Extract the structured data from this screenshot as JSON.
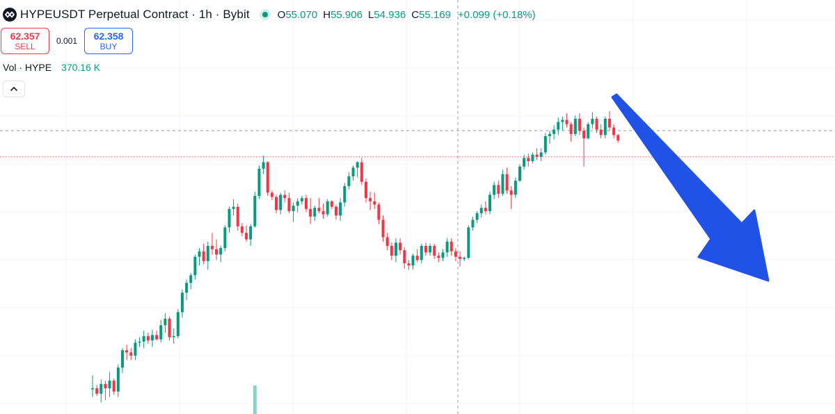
{
  "header": {
    "title": "HYPEUSDT Perpetual Contract · 1h · Bybit",
    "ohlc": {
      "o_label": "O",
      "o": "55.070",
      "h_label": "H",
      "h": "55.906",
      "l_label": "L",
      "l": "54.936",
      "c_label": "C",
      "c": "55.169",
      "change": "+0.099 (+0.18%)"
    }
  },
  "trade": {
    "sell_price": "62.357",
    "sell_label": "SELL",
    "spread": "0.001",
    "buy_price": "62.358",
    "buy_label": "BUY"
  },
  "volume": {
    "label": "Vol · HYPE",
    "value": "370.16 K"
  },
  "colors": {
    "up": "#089981",
    "down": "#f23645",
    "arrow": "#2152e8",
    "grid": "#f0f3fa"
  },
  "chart_data": {
    "type": "candlestick",
    "title": "HYPEUSDT Perpetual Contract",
    "interval": "1h",
    "ylim": [
      36.5,
      63.6
    ],
    "grid": true,
    "last_price_line": 59.4,
    "candles": [
      [
        38.0,
        39.3,
        37.3,
        38.1
      ],
      [
        38.1,
        38.4,
        37.4,
        37.6
      ],
      [
        37.6,
        38.9,
        36.8,
        38.5
      ],
      [
        38.5,
        38.8,
        37.0,
        38.1
      ],
      [
        38.1,
        39.6,
        37.3,
        38.8
      ],
      [
        38.8,
        39.0,
        37.5,
        37.8
      ],
      [
        37.8,
        40.3,
        37.3,
        40.0
      ],
      [
        40.0,
        41.8,
        39.5,
        41.6
      ],
      [
        41.6,
        42.1,
        40.7,
        41.4
      ],
      [
        41.4,
        41.8,
        40.7,
        41.1
      ],
      [
        41.1,
        42.6,
        40.7,
        42.3
      ],
      [
        42.3,
        42.8,
        41.9,
        42.4
      ],
      [
        42.4,
        43.4,
        41.8,
        42.9
      ],
      [
        42.9,
        43.2,
        42.2,
        42.5
      ],
      [
        42.5,
        43.5,
        41.9,
        43.0
      ],
      [
        43.0,
        43.4,
        42.5,
        42.6
      ],
      [
        42.6,
        44.4,
        42.3,
        43.9
      ],
      [
        43.9,
        45.0,
        43.2,
        44.5
      ],
      [
        44.5,
        44.7,
        42.5,
        42.8
      ],
      [
        42.8,
        43.6,
        42.2,
        42.9
      ],
      [
        42.9,
        45.4,
        42.7,
        45.1
      ],
      [
        45.1,
        47.2,
        44.6,
        46.9
      ],
      [
        46.9,
        48.1,
        46.2,
        47.8
      ],
      [
        47.8,
        48.7,
        47.2,
        48.5
      ],
      [
        48.5,
        50.4,
        48.1,
        50.2
      ],
      [
        50.2,
        51.0,
        49.4,
        50.7
      ],
      [
        50.7,
        51.4,
        49.5,
        49.8
      ],
      [
        49.8,
        51.6,
        49.0,
        51.2
      ],
      [
        51.2,
        52.4,
        50.4,
        50.9
      ],
      [
        50.9,
        51.8,
        49.9,
        50.4
      ],
      [
        50.4,
        51.2,
        49.7,
        51.0
      ],
      [
        51.0,
        53.1,
        50.7,
        52.9
      ],
      [
        52.9,
        54.8,
        52.4,
        54.6
      ],
      [
        54.6,
        55.5,
        54.0,
        54.8
      ],
      [
        54.8,
        55.1,
        52.6,
        53.0
      ],
      [
        53.0,
        53.3,
        52.1,
        52.4
      ],
      [
        52.4,
        53.1,
        51.6,
        51.8
      ],
      [
        51.8,
        53.2,
        51.2,
        53.0
      ],
      [
        53.0,
        56.2,
        52.9,
        55.8
      ],
      [
        55.8,
        58.6,
        55.5,
        58.3
      ],
      [
        58.3,
        59.5,
        57.8,
        58.9
      ],
      [
        58.9,
        59.0,
        55.8,
        56.1
      ],
      [
        56.1,
        56.3,
        55.4,
        55.7
      ],
      [
        55.7,
        55.9,
        54.2,
        54.5
      ],
      [
        54.5,
        56.1,
        54.1,
        55.9
      ],
      [
        55.9,
        56.3,
        55.2,
        55.6
      ],
      [
        55.6,
        56.1,
        54.2,
        54.4
      ],
      [
        54.4,
        55.2,
        53.4,
        54.9
      ],
      [
        54.9,
        55.6,
        54.3,
        55.3
      ],
      [
        55.3,
        55.8,
        55.0,
        55.6
      ],
      [
        55.6,
        55.9,
        54.3,
        54.6
      ],
      [
        54.6,
        55.6,
        53.2,
        53.9
      ],
      [
        53.9,
        54.9,
        53.5,
        54.7
      ],
      [
        54.7,
        55.6,
        54.2,
        54.4
      ],
      [
        54.4,
        55.1,
        53.7,
        54.1
      ],
      [
        54.1,
        55.5,
        53.9,
        55.3
      ],
      [
        55.3,
        55.4,
        54.6,
        54.8
      ],
      [
        54.8,
        55.0,
        53.6,
        54.0
      ],
      [
        54.0,
        55.6,
        53.5,
        55.2
      ],
      [
        55.2,
        57.0,
        54.8,
        56.7
      ],
      [
        56.7,
        58.0,
        56.4,
        57.6
      ],
      [
        57.6,
        58.6,
        57.2,
        58.4
      ],
      [
        58.4,
        59.0,
        57.5,
        58.9
      ],
      [
        58.9,
        59.3,
        56.8,
        57.1
      ],
      [
        57.1,
        57.4,
        55.2,
        55.6
      ],
      [
        55.6,
        56.2,
        54.5,
        55.3
      ],
      [
        55.3,
        56.1,
        54.6,
        55.0
      ],
      [
        55.0,
        55.2,
        53.2,
        53.6
      ],
      [
        53.6,
        54.0,
        51.6,
        52.0
      ],
      [
        52.0,
        52.4,
        50.8,
        51.2
      ],
      [
        51.2,
        51.5,
        49.9,
        50.3
      ],
      [
        50.3,
        51.9,
        49.7,
        51.5
      ],
      [
        51.5,
        51.9,
        50.4,
        50.8
      ],
      [
        50.8,
        51.1,
        49.1,
        49.6
      ],
      [
        49.6,
        49.9,
        49.0,
        49.4
      ],
      [
        49.4,
        50.5,
        49.0,
        50.3
      ],
      [
        50.3,
        50.9,
        49.7,
        49.9
      ],
      [
        49.9,
        51.4,
        49.6,
        51.2
      ],
      [
        51.2,
        51.5,
        50.3,
        50.6
      ],
      [
        50.6,
        51.4,
        50.3,
        51.2
      ],
      [
        51.2,
        51.4,
        50.0,
        50.3
      ],
      [
        50.3,
        50.6,
        49.7,
        50.1
      ],
      [
        50.1,
        50.9,
        49.8,
        50.6
      ],
      [
        50.6,
        51.9,
        50.2,
        51.6
      ],
      [
        51.6,
        51.9,
        50.3,
        50.7
      ],
      [
        50.7,
        51.0,
        49.8,
        50.2
      ],
      [
        50.2,
        50.7,
        49.3,
        50.0
      ],
      [
        50.0,
        50.2,
        49.8,
        50.1
      ],
      [
        50.1,
        53.1,
        50.0,
        52.9
      ],
      [
        52.9,
        53.9,
        52.6,
        53.6
      ],
      [
        53.6,
        54.4,
        53.3,
        54.2
      ],
      [
        54.2,
        55.0,
        53.8,
        54.7
      ],
      [
        54.7,
        55.3,
        54.1,
        54.4
      ],
      [
        54.4,
        56.2,
        54.1,
        55.9
      ],
      [
        55.9,
        57.1,
        55.5,
        56.8
      ],
      [
        56.8,
        57.2,
        55.6,
        56.0
      ],
      [
        56.0,
        58.2,
        55.8,
        57.8
      ],
      [
        57.8,
        58.4,
        56.0,
        56.3
      ],
      [
        56.3,
        56.7,
        54.6,
        55.9
      ],
      [
        55.9,
        57.5,
        55.6,
        57.2
      ],
      [
        57.2,
        58.7,
        57.1,
        58.5
      ],
      [
        58.5,
        59.6,
        58.2,
        59.3
      ],
      [
        59.3,
        59.7,
        58.5,
        59.0
      ],
      [
        59.0,
        59.8,
        58.8,
        59.6
      ],
      [
        59.6,
        60.2,
        59.1,
        59.4
      ],
      [
        59.4,
        60.2,
        59.0,
        59.8
      ],
      [
        59.8,
        61.6,
        59.6,
        61.3
      ],
      [
        61.3,
        61.8,
        60.6,
        61.5
      ],
      [
        61.5,
        62.3,
        61.0,
        61.9
      ],
      [
        61.9,
        63.0,
        61.4,
        62.6
      ],
      [
        62.6,
        63.1,
        61.8,
        62.8
      ],
      [
        62.8,
        63.4,
        62.1,
        62.4
      ],
      [
        62.4,
        62.6,
        60.8,
        61.5
      ],
      [
        61.5,
        63.2,
        61.3,
        62.9
      ],
      [
        62.9,
        63.4,
        61.4,
        61.8
      ],
      [
        61.8,
        62.1,
        58.5,
        61.1
      ],
      [
        61.1,
        62.6,
        61.0,
        62.4
      ],
      [
        62.4,
        63.5,
        62.0,
        62.9
      ],
      [
        62.9,
        63.1,
        61.6,
        61.9
      ],
      [
        61.9,
        62.4,
        61.1,
        61.4
      ],
      [
        61.4,
        63.1,
        61.1,
        62.9
      ],
      [
        62.9,
        63.6,
        61.8,
        62.1
      ],
      [
        62.1,
        62.4,
        61.1,
        61.4
      ],
      [
        61.4,
        61.5,
        60.7,
        60.9
      ]
    ],
    "volume_bar": {
      "index": 38,
      "value": 370.16
    }
  }
}
